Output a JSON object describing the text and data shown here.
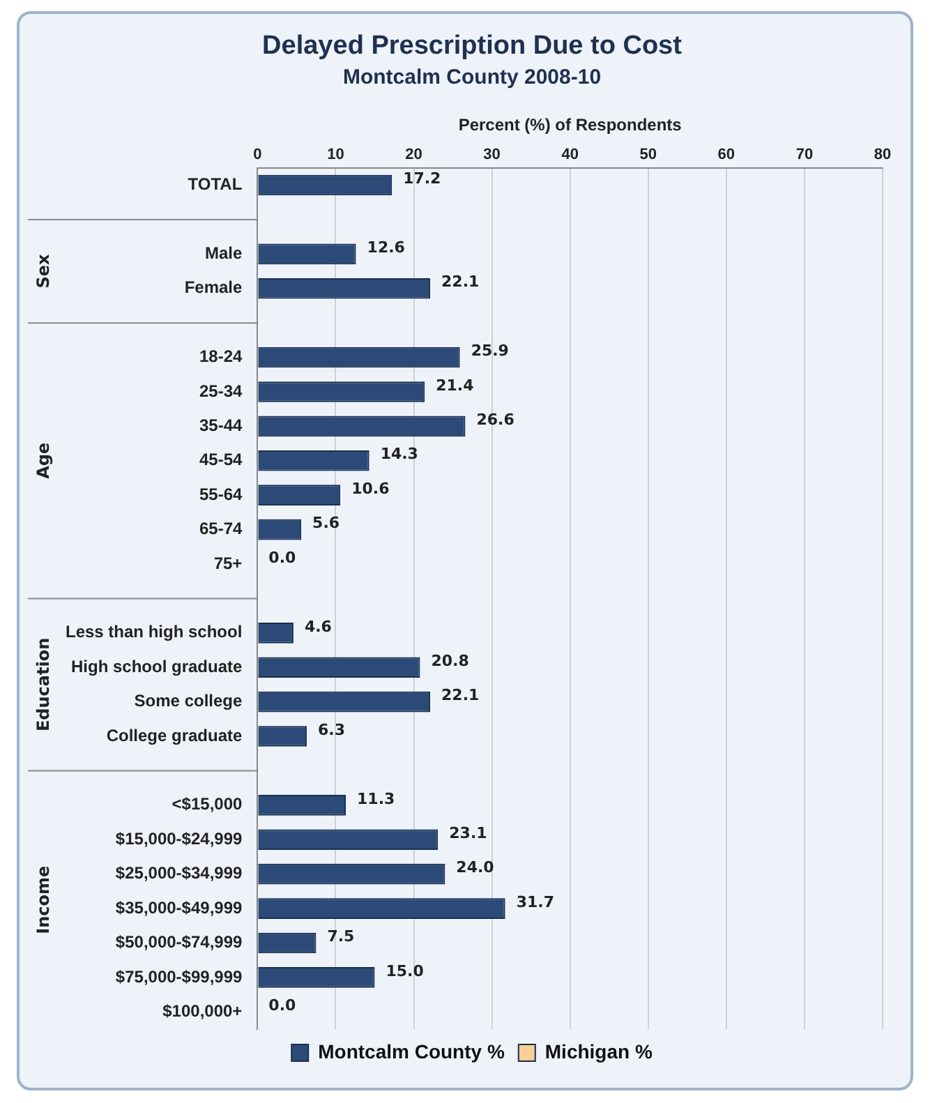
{
  "chart_data": {
    "type": "bar",
    "orientation": "horizontal",
    "title": "Delayed Prescription Due to Cost",
    "subtitle": "Montcalm County 2008-10",
    "xlabel": "Percent (%) of Respondents",
    "categories": [
      "TOTAL",
      null,
      "Male",
      "Female",
      null,
      "18-24",
      "25-34",
      "35-44",
      "45-54",
      "55-64",
      "65-74",
      "75+",
      null,
      "Less than high school",
      "High school graduate",
      "Some college",
      "College graduate",
      null,
      "<$15,000",
      "$15,000-$24,999",
      "$25,000-$34,999",
      "$35,000-$49,999",
      "$50,000-$74,999",
      "$75,000-$99,999",
      "$100,000+"
    ],
    "series": [
      {
        "name": "Montcalm County %",
        "color": "#2b4a78",
        "values": [
          17.2,
          null,
          12.6,
          22.1,
          null,
          25.9,
          21.4,
          26.6,
          14.3,
          10.6,
          5.6,
          0.0,
          null,
          4.6,
          20.8,
          22.1,
          6.3,
          null,
          11.3,
          23.1,
          24.0,
          31.7,
          7.5,
          15.0,
          0.0
        ],
        "value_labels": [
          "17.2",
          null,
          "12.6",
          "22.1",
          null,
          "25.9",
          "21.4",
          "26.6",
          "14.3",
          "10.6",
          "5.6",
          "0.0",
          null,
          "4.6",
          "20.8",
          "22.1",
          "6.3",
          null,
          "11.3",
          "23.1",
          "24.0",
          "31.7",
          "7.5",
          "15.0",
          "0.0"
        ]
      },
      {
        "name": "Michigan %",
        "color": "#f8cf97",
        "values": [
          null,
          null,
          null,
          null,
          null,
          null,
          null,
          null,
          null,
          null,
          null,
          null,
          null,
          null,
          null,
          null,
          null,
          null,
          null,
          null,
          null,
          null,
          null,
          null,
          null
        ]
      }
    ],
    "annotations": [
      "Sex",
      "Age",
      "Education",
      "Income"
    ],
    "xlim": [
      0,
      80
    ],
    "xticks": [
      0,
      10,
      20,
      30,
      40,
      50,
      60,
      70,
      80
    ],
    "grid": "x",
    "legend": "bottom"
  }
}
